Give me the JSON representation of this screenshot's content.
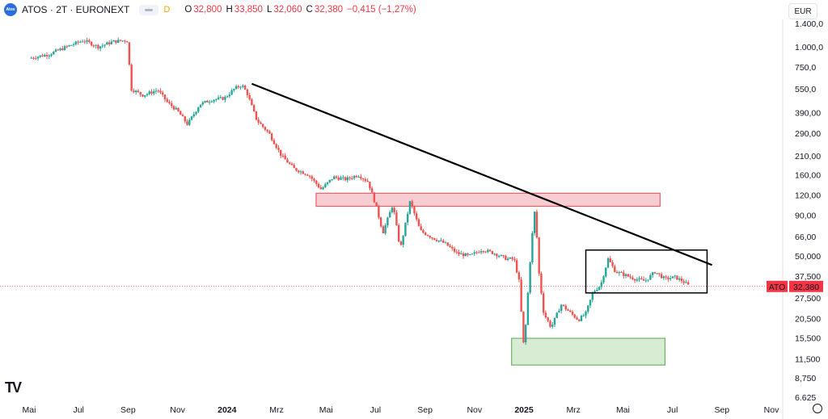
{
  "header": {
    "logo_text": "Atos",
    "symbol": "ATOS · 2T · EURONEXT",
    "d_badge": "D",
    "ohlc": [
      {
        "k": "O",
        "v": "32,800"
      },
      {
        "k": "H",
        "v": "33,850"
      },
      {
        "k": "L",
        "v": "32,060"
      },
      {
        "k": "C",
        "v": "32,380"
      },
      {
        "k": "",
        "v": "−0,415 (−1,27%)"
      }
    ]
  },
  "currency_button": "EUR",
  "price_label": {
    "symbol": "ATO",
    "value": "32,380"
  },
  "colors": {
    "up": "#26a69a",
    "down": "#ef5350",
    "trendline": "#000000",
    "red_zone_fill": "#f8cdd1",
    "red_zone_stroke": "#e5606b",
    "green_zone_fill": "#d8ecd4",
    "green_zone_stroke": "#6fb466",
    "price_line": "#f23645"
  },
  "chart_data": {
    "type": "candlestick",
    "scale": "log",
    "y_ticks": [
      "1.400,0",
      "1.000,0",
      "750,0",
      "550,0",
      "390,00",
      "290,00",
      "210,00",
      "160,00",
      "120,00",
      "90,00",
      "66,00",
      "50,000",
      "37,500",
      "27,500",
      "20,500",
      "15,500",
      "11,500",
      "8,750",
      "6.625"
    ],
    "y_tick_values": [
      1400,
      1000,
      750,
      550,
      390,
      290,
      210,
      160,
      120,
      90,
      66,
      50,
      37.5,
      27.5,
      20.5,
      15.5,
      11.5,
      8.75,
      6.625
    ],
    "x_ticks": [
      {
        "label": "Mai",
        "bold": false
      },
      {
        "label": "Jul",
        "bold": false
      },
      {
        "label": "Sep",
        "bold": false
      },
      {
        "label": "Nov",
        "bold": false
      },
      {
        "label": "2024",
        "bold": true
      },
      {
        "label": "Mrz",
        "bold": false
      },
      {
        "label": "Mai",
        "bold": false
      },
      {
        "label": "Jul",
        "bold": false
      },
      {
        "label": "Sep",
        "bold": false
      },
      {
        "label": "Nov",
        "bold": false
      },
      {
        "label": "2025",
        "bold": true
      },
      {
        "label": "Mrz",
        "bold": false
      },
      {
        "label": "Mai",
        "bold": false
      },
      {
        "label": "Jul",
        "bold": false
      },
      {
        "label": "Sep",
        "bold": false
      },
      {
        "label": "Nov",
        "bold": false
      }
    ],
    "x_tick_times": [
      0,
      2,
      4,
      6,
      8,
      10,
      12,
      14,
      16,
      18,
      20,
      22,
      24,
      26,
      28,
      30
    ],
    "last_price": 32.38,
    "series_path": [
      [
        0,
        850
      ],
      [
        0.8,
        900
      ],
      [
        1.5,
        1000
      ],
      [
        2.2,
        1100
      ],
      [
        2.8,
        1000
      ],
      [
        3.4,
        1080
      ],
      [
        3.9,
        1100
      ],
      [
        4.0,
        1080
      ],
      [
        4.1,
        550
      ],
      [
        4.6,
        500
      ],
      [
        5.2,
        540
      ],
      [
        5.6,
        450
      ],
      [
        6.0,
        400
      ],
      [
        6.4,
        330
      ],
      [
        6.9,
        440
      ],
      [
        7.4,
        470
      ],
      [
        7.9,
        480
      ],
      [
        8.3,
        550
      ],
      [
        8.6,
        580
      ],
      [
        8.8,
        520
      ],
      [
        9.2,
        350
      ],
      [
        9.7,
        290
      ],
      [
        10.2,
        210
      ],
      [
        10.7,
        175
      ],
      [
        11.3,
        160
      ],
      [
        11.8,
        130
      ],
      [
        12.3,
        155
      ],
      [
        12.8,
        150
      ],
      [
        13.3,
        160
      ],
      [
        13.7,
        145
      ],
      [
        14.0,
        105
      ],
      [
        14.3,
        70
      ],
      [
        14.7,
        105
      ],
      [
        15.0,
        55
      ],
      [
        15.4,
        110
      ],
      [
        15.8,
        72
      ],
      [
        16.3,
        65
      ],
      [
        16.8,
        60
      ],
      [
        17.3,
        52
      ],
      [
        17.8,
        50
      ],
      [
        18.3,
        55
      ],
      [
        18.8,
        52
      ],
      [
        19.3,
        48
      ],
      [
        19.6,
        48
      ],
      [
        19.8,
        35
      ],
      [
        20.0,
        13
      ],
      [
        20.15,
        28
      ],
      [
        20.3,
        60
      ],
      [
        20.45,
        100
      ],
      [
        20.6,
        40
      ],
      [
        20.8,
        22
      ],
      [
        21.1,
        18
      ],
      [
        21.5,
        25
      ],
      [
        21.9,
        22
      ],
      [
        22.2,
        20
      ],
      [
        22.5,
        22
      ],
      [
        22.8,
        30
      ],
      [
        23.1,
        33
      ],
      [
        23.4,
        48
      ],
      [
        23.7,
        40
      ],
      [
        24.1,
        38
      ],
      [
        24.5,
        36
      ],
      [
        24.9,
        35
      ],
      [
        25.3,
        40
      ],
      [
        25.7,
        36
      ],
      [
        26.1,
        37
      ],
      [
        26.4,
        35
      ],
      [
        26.7,
        32.4
      ]
    ],
    "annotations": {
      "trendline": {
        "start": [
          9.0,
          590
        ],
        "end": [
          27.6,
          44
        ]
      },
      "resistance_zone": {
        "t0": 11.6,
        "t1": 25.5,
        "p_low": 102,
        "p_high": 123
      },
      "support_zone": {
        "t0": 19.5,
        "t1": 25.7,
        "p_low": 10.5,
        "p_high": 15.4
      },
      "range_box": {
        "t0": 22.5,
        "t1": 27.4,
        "p_low": 29.5,
        "p_high": 54.5
      }
    }
  }
}
